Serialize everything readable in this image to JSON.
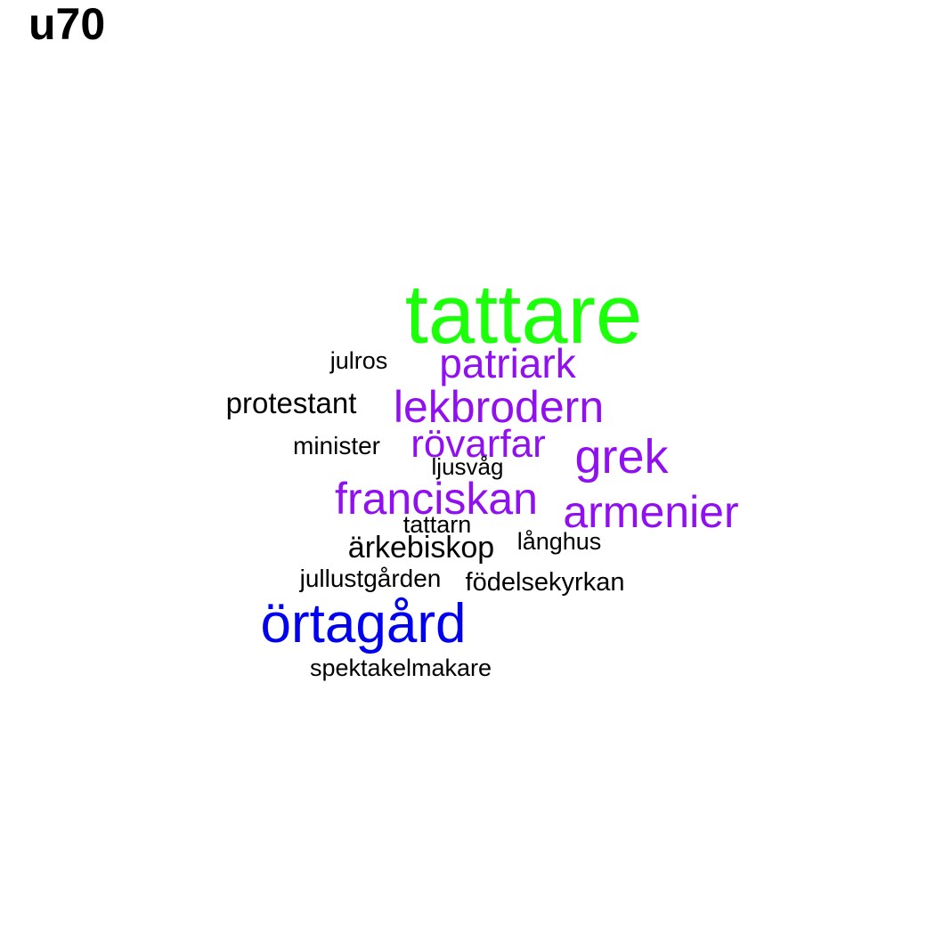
{
  "title": "u70",
  "colors": {
    "large": "#1bff0b",
    "blue": "#0000ee",
    "purple": "#9010f0",
    "black": "#000000"
  },
  "words": [
    {
      "text": "tattare",
      "tier": "large"
    },
    {
      "text": "patriark",
      "tier": "purple"
    },
    {
      "text": "julros",
      "tier": "black"
    },
    {
      "text": "protestant",
      "tier": "black"
    },
    {
      "text": "lekbrodern",
      "tier": "purple"
    },
    {
      "text": "minister",
      "tier": "black"
    },
    {
      "text": "rövarfar",
      "tier": "purple"
    },
    {
      "text": "grek",
      "tier": "purple"
    },
    {
      "text": "ljusvåg",
      "tier": "black"
    },
    {
      "text": "franciskan",
      "tier": "purple"
    },
    {
      "text": "armenier",
      "tier": "purple"
    },
    {
      "text": "tattarn",
      "tier": "black"
    },
    {
      "text": "ärkebiskop",
      "tier": "black"
    },
    {
      "text": "långhus",
      "tier": "black"
    },
    {
      "text": "jullustgården",
      "tier": "black"
    },
    {
      "text": "födelsekyrkan",
      "tier": "black"
    },
    {
      "text": "örtagård",
      "tier": "blue"
    },
    {
      "text": "spektakelmakare",
      "tier": "black"
    }
  ]
}
